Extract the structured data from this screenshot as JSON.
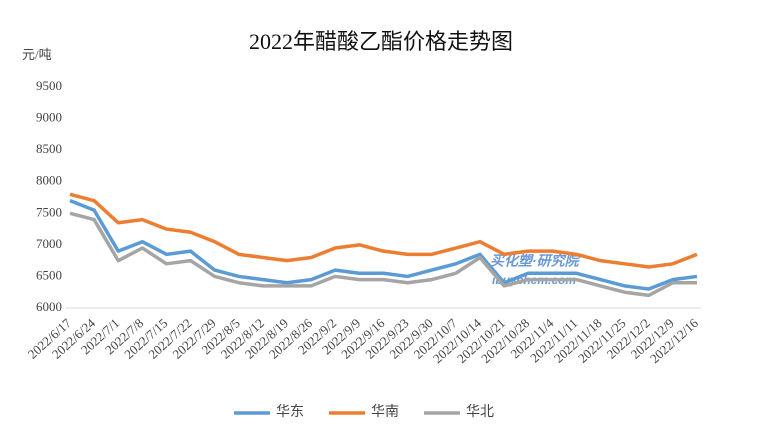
{
  "chart_data": {
    "type": "line",
    "title": "2022年醋酸乙酯价格走势图",
    "y_label": "元/吨",
    "watermark": [
      "买化塑·研究院",
      "ibuychem.com"
    ],
    "categories": [
      "2022/6/17",
      "2022/6/24",
      "2022/7/1",
      "2022/7/8",
      "2022/7/15",
      "2022/7/22",
      "2022/7/29",
      "2022/8/5",
      "2022/8/12",
      "2022/8/19",
      "2022/8/26",
      "2022/9/2",
      "2022/9/9",
      "2022/9/16",
      "2022/9/23",
      "2022/9/30",
      "2022/10/7",
      "2022/10/14",
      "2022/10/21",
      "2022/10/28",
      "2022/11/4",
      "2022/11/11",
      "2022/11/18",
      "2022/11/25",
      "2022/12/2",
      "2022/12/9",
      "2022/12/16"
    ],
    "series": [
      {
        "name": "华东",
        "color": "#5b9bd5",
        "values": [
          7700,
          7550,
          6900,
          7050,
          6850,
          6900,
          6600,
          6500,
          6450,
          6400,
          6450,
          6600,
          6550,
          6550,
          6500,
          6600,
          6700,
          6850,
          6400,
          6550,
          6550,
          6550,
          6450,
          6350,
          6300,
          6450,
          6500
        ]
      },
      {
        "name": "华南",
        "color": "#ed7d31",
        "values": [
          7800,
          7700,
          7350,
          7400,
          7250,
          7200,
          7050,
          6850,
          6800,
          6750,
          6800,
          6950,
          7000,
          6900,
          6850,
          6850,
          6950,
          7050,
          6850,
          6900,
          6900,
          6850,
          6750,
          6700,
          6650,
          6700,
          6850
        ]
      },
      {
        "name": "华北",
        "color": "#a5a5a5",
        "values": [
          7500,
          7400,
          6750,
          6950,
          6700,
          6750,
          6500,
          6400,
          6350,
          6350,
          6350,
          6500,
          6450,
          6450,
          6400,
          6450,
          6550,
          6800,
          6350,
          6450,
          6450,
          6450,
          6350,
          6250,
          6200,
          6400,
          6400
        ]
      }
    ],
    "ylim": [
      6000,
      9500
    ],
    "yticks": [
      6000,
      6500,
      7000,
      7500,
      8000,
      8500,
      9000,
      9500
    ],
    "legend": "bottom"
  }
}
